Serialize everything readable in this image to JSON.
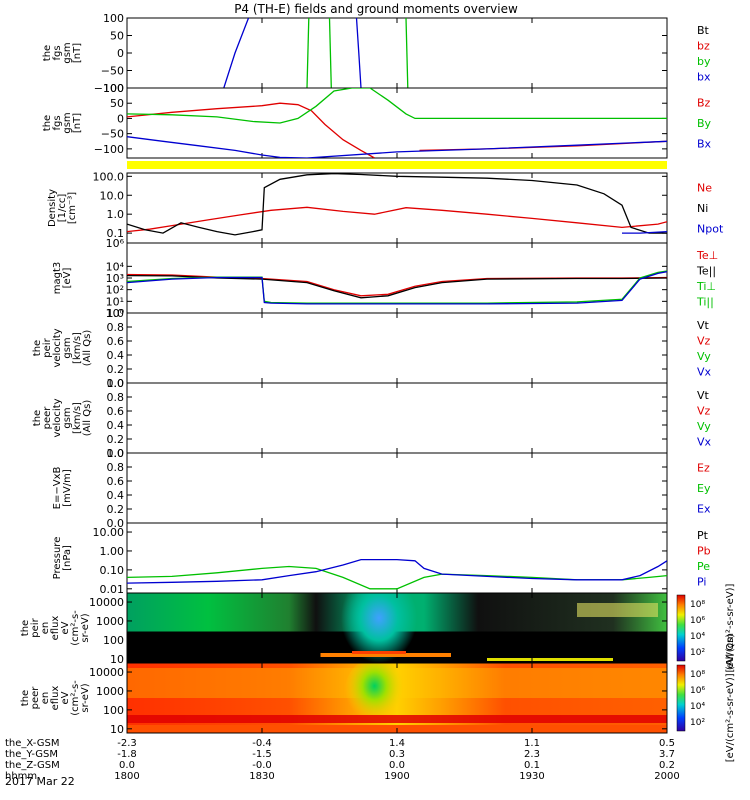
{
  "title": "P4 (TH-E) fields and ground moments overview",
  "date_label": "2017 Mar 22",
  "colors": {
    "black": "#000000",
    "red": "#e00000",
    "green": "#00c000",
    "blue": "#0000d0",
    "yellow": "#ffff00"
  },
  "chart_data": {
    "type": "line",
    "x_range": [
      "18:00",
      "20:00"
    ],
    "x_ticks": [
      "1800",
      "1830",
      "1900",
      "1930",
      "2000"
    ],
    "x_tick_minutes": [
      0,
      30,
      60,
      90,
      120
    ],
    "ephemeris": [
      {
        "label": "the_X-GSM",
        "values": [
          "-2.3",
          "-0.4",
          "1.4",
          "1.1",
          "0.5"
        ]
      },
      {
        "label": "the_Y-GSM",
        "values": [
          "-1.8",
          "-1.5",
          "0.3",
          "2.3",
          "3.7"
        ]
      },
      {
        "label": "the_Z-GSM",
        "values": [
          "0.0",
          "-0.0",
          "0.0",
          "0.1",
          "0.2"
        ]
      },
      {
        "label": "hhmm",
        "values": [
          "1800",
          "1830",
          "1900",
          "1930",
          "2000"
        ]
      }
    ],
    "panels": [
      {
        "id": "fgs",
        "ylabel": [
          "the",
          "fgs",
          "gsm",
          "[nT]"
        ],
        "scale": "linear",
        "ylim": [
          -100,
          100
        ],
        "ticks": [
          100,
          50,
          0,
          -50,
          -100
        ],
        "tick_labels": [
          "100",
          "50",
          "0",
          "−50",
          "−100"
        ],
        "legend": [
          {
            "name": "Bt",
            "color": "#000000"
          },
          {
            "name": "bz",
            "color": "#e00000"
          },
          {
            "name": "by",
            "color": "#00c000"
          },
          {
            "name": "bx",
            "color": "#0000d0"
          }
        ],
        "series": [
          {
            "name": "bx",
            "color": "#0000d0",
            "x": [
              21.5,
              24,
              27
            ],
            "y": [
              -100,
              0,
              100
            ]
          },
          {
            "name": "bx",
            "color": "#0000d0",
            "x": [
              51.0,
              51.5,
              52.0
            ],
            "y": [
              100,
              0,
              -100
            ]
          },
          {
            "name": "by",
            "color": "#00c000",
            "x": [
              40.0,
              40.2,
              40.4
            ],
            "y": [
              -100,
              0,
              100
            ]
          },
          {
            "name": "by",
            "color": "#00c000",
            "x": [
              45.0,
              45.2,
              45.4
            ],
            "y": [
              100,
              0,
              -100
            ]
          },
          {
            "name": "by",
            "color": "#00c000",
            "x": [
              62.0,
              62.2,
              62.4
            ],
            "y": [
              100,
              0,
              -100
            ]
          }
        ]
      },
      {
        "id": "fgs2",
        "ylabel": [
          "the",
          "fgs",
          "gsm",
          "[nT]"
        ],
        "scale": "linear",
        "ylim": [
          -130,
          100
        ],
        "ticks": [
          100,
          50,
          0,
          -50,
          -100
        ],
        "tick_labels": [
          "100",
          "50",
          "0",
          "−50",
          "−100"
        ],
        "legend": [
          {
            "name": "Bz",
            "color": "#e00000"
          },
          {
            "name": "By",
            "color": "#00c000"
          },
          {
            "name": "Bx",
            "color": "#0000d0"
          }
        ],
        "series": [
          {
            "name": "Bz",
            "color": "#e00000",
            "x": [
              0,
              10,
              20,
              30,
              34,
              38,
              41,
              44,
              48,
              52,
              55
            ],
            "y": [
              5,
              20,
              32,
              42,
              50,
              45,
              25,
              -20,
              -70,
              -105,
              -130
            ]
          },
          {
            "name": "Bz",
            "color": "#e00000",
            "x": [
              65,
              80,
              100,
              120
            ],
            "y": [
              -105,
              -100,
              -90,
              -75
            ]
          },
          {
            "name": "By",
            "color": "#00c000",
            "x": [
              0,
              10,
              20,
              28,
              34,
              38,
              42,
              46,
              50,
              54,
              58,
              62,
              64,
              70,
              120
            ],
            "y": [
              15,
              12,
              5,
              -10,
              -15,
              0,
              40,
              90,
              100,
              100,
              60,
              15,
              0,
              0,
              0
            ]
          },
          {
            "name": "Bx",
            "color": "#0000d0",
            "x": [
              0,
              8,
              16,
              24,
              30,
              34,
              40,
              60,
              80,
              100,
              120
            ],
            "y": [
              -60,
              -75,
              -90,
              -105,
              -120,
              -128,
              -130,
              -110,
              -100,
              -88,
              -75
            ]
          }
        ]
      },
      {
        "id": "density",
        "ylabel": [
          "Density",
          "[1/cc]",
          "[cm⁻³]"
        ],
        "scale": "log",
        "ylim": [
          0.03,
          150
        ],
        "ticks": [
          100,
          10,
          1,
          0.1
        ],
        "tick_labels": [
          "100.0",
          "10.0",
          "1.0",
          "0.1"
        ],
        "legend": [
          {
            "name": "Ne",
            "color": "#e00000"
          },
          {
            "name": "Ni",
            "color": "#000000"
          },
          {
            "name": "Npot",
            "color": "#0000d0"
          }
        ],
        "series": [
          {
            "name": "Ne",
            "color": "#e00000",
            "x": [
              0,
              5,
              10,
              18,
              25,
              32,
              40,
              48,
              55,
              62,
              70,
              80,
              90,
              100,
              110,
              118,
              120
            ],
            "y": [
              0.12,
              0.16,
              0.25,
              0.5,
              0.9,
              1.6,
              2.3,
              1.4,
              1.0,
              2.2,
              1.6,
              1.0,
              0.6,
              0.35,
              0.2,
              0.3,
              0.4
            ]
          },
          {
            "name": "Ni",
            "color": "#000000",
            "x": [
              0,
              4,
              8,
              12,
              16,
              20,
              24,
              28,
              30,
              30.5,
              34,
              40,
              46,
              52,
              60,
              70,
              80,
              90,
              100,
              106,
              110,
              112,
              116,
              120
            ],
            "y": [
              0.3,
              0.15,
              0.1,
              0.35,
              0.2,
              0.12,
              0.08,
              0.12,
              0.15,
              25,
              70,
              120,
              140,
              125,
              100,
              90,
              80,
              60,
              35,
              12,
              3,
              0.2,
              0.1,
              0.1
            ]
          },
          {
            "name": "Npot",
            "color": "#0000d0",
            "x": [
              110,
              114,
              120
            ],
            "y": [
              0.1,
              0.1,
              0.12
            ]
          }
        ]
      },
      {
        "id": "temp",
        "ylabel": [
          "magt3",
          "[eV]"
        ],
        "scale": "log",
        "ylim": [
          1,
          1000000
        ],
        "ticks": [
          1000000,
          10000,
          1000,
          100,
          10,
          1
        ],
        "tick_labels": [
          "10⁶",
          "10⁴",
          "10³",
          "10²",
          "10¹",
          "10⁰"
        ],
        "legend": [
          {
            "name": "Te⊥",
            "color": "#e00000"
          },
          {
            "name": "Te||",
            "color": "#000000"
          },
          {
            "name": "Ti⊥",
            "color": "#00c000"
          },
          {
            "name": "Ti||",
            "color": "#00c000"
          }
        ],
        "series": [
          {
            "name": "Te⊥",
            "color": "#e00000",
            "x": [
              0,
              10,
              20,
              30,
              40,
              46,
              52,
              58,
              64,
              70,
              80,
              100,
              110,
              120
            ],
            "y": [
              2000,
              1800,
              1200,
              900,
              500,
              100,
              30,
              40,
              200,
              500,
              900,
              1000,
              1000,
              1100
            ]
          },
          {
            "name": "Te||",
            "color": "#000000",
            "x": [
              0,
              10,
              20,
              30,
              40,
              46,
              52,
              58,
              64,
              70,
              80,
              100,
              110,
              120
            ],
            "y": [
              1600,
              1500,
              1000,
              800,
              400,
              80,
              20,
              30,
              150,
              400,
              800,
              900,
              900,
              1000
            ]
          },
          {
            "name": "Ti⊥",
            "color": "#00c000",
            "x": [
              0,
              10,
              20,
              30,
              30.5,
              32,
              40,
              60,
              80,
              100,
              110,
              114,
              118,
              120
            ],
            "y": [
              500,
              900,
              1200,
              1200,
              10,
              8,
              7,
              7,
              7,
              9,
              15,
              1000,
              3000,
              4000
            ]
          },
          {
            "name": "Ti||",
            "color": "#0000d0",
            "x": [
              0,
              10,
              20,
              30,
              30.5,
              32,
              40,
              60,
              80,
              100,
              110,
              114,
              118,
              120
            ],
            "y": [
              400,
              800,
              1100,
              1100,
              8,
              7,
              6,
              6,
              6,
              7,
              12,
              800,
              2500,
              3500
            ]
          }
        ]
      },
      {
        "id": "peir-vel",
        "ylabel": [
          "the",
          "peir",
          "velocity",
          "gsm",
          "[km/s]",
          "(All Qs)"
        ],
        "scale": "linear",
        "ylim": [
          0,
          1
        ],
        "ticks": [
          1.0,
          0.8,
          0.6,
          0.4,
          0.2,
          0.0
        ],
        "tick_labels": [
          "1.0",
          "0.8",
          "0.6",
          "0.4",
          "0.2",
          "0.0"
        ],
        "legend": [
          {
            "name": "Vt",
            "color": "#000000"
          },
          {
            "name": "Vz",
            "color": "#e00000"
          },
          {
            "name": "Vy",
            "color": "#00c000"
          },
          {
            "name": "Vx",
            "color": "#0000d0"
          }
        ],
        "series": []
      },
      {
        "id": "peer-vel",
        "ylabel": [
          "the",
          "peer",
          "velocity",
          "gsm",
          "[km/s]",
          "(All Qs)"
        ],
        "scale": "linear",
        "ylim": [
          0,
          1
        ],
        "ticks": [
          1.0,
          0.8,
          0.6,
          0.4,
          0.2,
          0.0
        ],
        "tick_labels": [
          "1.0",
          "0.8",
          "0.6",
          "0.4",
          "0.2",
          "0.0"
        ],
        "legend": [
          {
            "name": "Vt",
            "color": "#000000"
          },
          {
            "name": "Vz",
            "color": "#e00000"
          },
          {
            "name": "Vy",
            "color": "#00c000"
          },
          {
            "name": "Vx",
            "color": "#0000d0"
          }
        ],
        "series": []
      },
      {
        "id": "efield",
        "ylabel": [
          "E=−VxB",
          "[mV/m]"
        ],
        "scale": "linear",
        "ylim": [
          0,
          1
        ],
        "ticks": [
          1.0,
          0.8,
          0.6,
          0.4,
          0.2,
          0.0
        ],
        "tick_labels": [
          "1.0",
          "0.8",
          "0.6",
          "0.4",
          "0.2",
          "0.0"
        ],
        "legend": [
          {
            "name": "Ez",
            "color": "#e00000"
          },
          {
            "name": "Ey",
            "color": "#00c000"
          },
          {
            "name": "Ex",
            "color": "#0000d0"
          }
        ],
        "series": []
      },
      {
        "id": "pressure",
        "ylabel": [
          "Pressure",
          "[nPa]"
        ],
        "scale": "log",
        "ylim": [
          0.006,
          30
        ],
        "ticks": [
          10,
          1,
          0.1,
          0.01
        ],
        "tick_labels": [
          "10.00",
          "1.00",
          "0.10",
          "0.01"
        ],
        "legend": [
          {
            "name": "Pt",
            "color": "#000000"
          },
          {
            "name": "Pb",
            "color": "#e00000"
          },
          {
            "name": "Pe",
            "color": "#00c000"
          },
          {
            "name": "Pi",
            "color": "#0000d0"
          }
        ],
        "series": [
          {
            "name": "Pe",
            "color": "#00c000",
            "x": [
              0,
              10,
              20,
              30,
              36,
              42,
              48,
              54,
              60,
              66,
              70,
              80,
              90,
              100,
              110,
              116,
              120
            ],
            "y": [
              0.04,
              0.045,
              0.07,
              0.12,
              0.15,
              0.12,
              0.04,
              0.01,
              0.01,
              0.04,
              0.06,
              0.05,
              0.04,
              0.03,
              0.03,
              0.04,
              0.05
            ]
          },
          {
            "name": "Pi",
            "color": "#0000d0",
            "x": [
              0,
              10,
              20,
              30,
              36,
              42,
              48,
              52,
              60,
              64,
              66,
              70,
              80,
              90,
              100,
              110,
              114,
              118,
              120
            ],
            "y": [
              0.02,
              0.022,
              0.025,
              0.03,
              0.05,
              0.08,
              0.18,
              0.35,
              0.35,
              0.3,
              0.12,
              0.06,
              0.045,
              0.035,
              0.03,
              0.03,
              0.05,
              0.15,
              0.3
            ]
          }
        ]
      },
      {
        "id": "peir-spec",
        "type": "heatmap",
        "ylabel": [
          "the",
          "peir",
          "en",
          "eflux",
          "eV",
          "(cm²-s-",
          "sr-eV)"
        ],
        "scale": "log",
        "ylim": [
          6,
          30000
        ],
        "ticks": [
          10000,
          1000,
          100,
          10
        ],
        "tick_labels": [
          "10000",
          "1000",
          "100",
          "10"
        ],
        "colorbar_label": "[eV/(cm²-s-sr-eV)]",
        "colorbar_ticks": [
          "10⁸",
          "10⁶",
          "10⁴",
          "10²"
        ]
      },
      {
        "id": "peer-spec",
        "type": "heatmap",
        "ylabel": [
          "the",
          "peer",
          "en",
          "eflux",
          "eV",
          "(cm²-s-",
          "sr-eV)"
        ],
        "scale": "log",
        "ylim": [
          6,
          30000
        ],
        "ticks": [
          10000,
          1000,
          100,
          10
        ],
        "tick_labels": [
          "10000",
          "1000",
          "100",
          "10"
        ],
        "colorbar_label": "[eV/(cm²-s-sr-eV)] (All Qs)",
        "colorbar_ticks": [
          "10⁸",
          "10⁶",
          "10⁴",
          "10²"
        ]
      }
    ]
  }
}
